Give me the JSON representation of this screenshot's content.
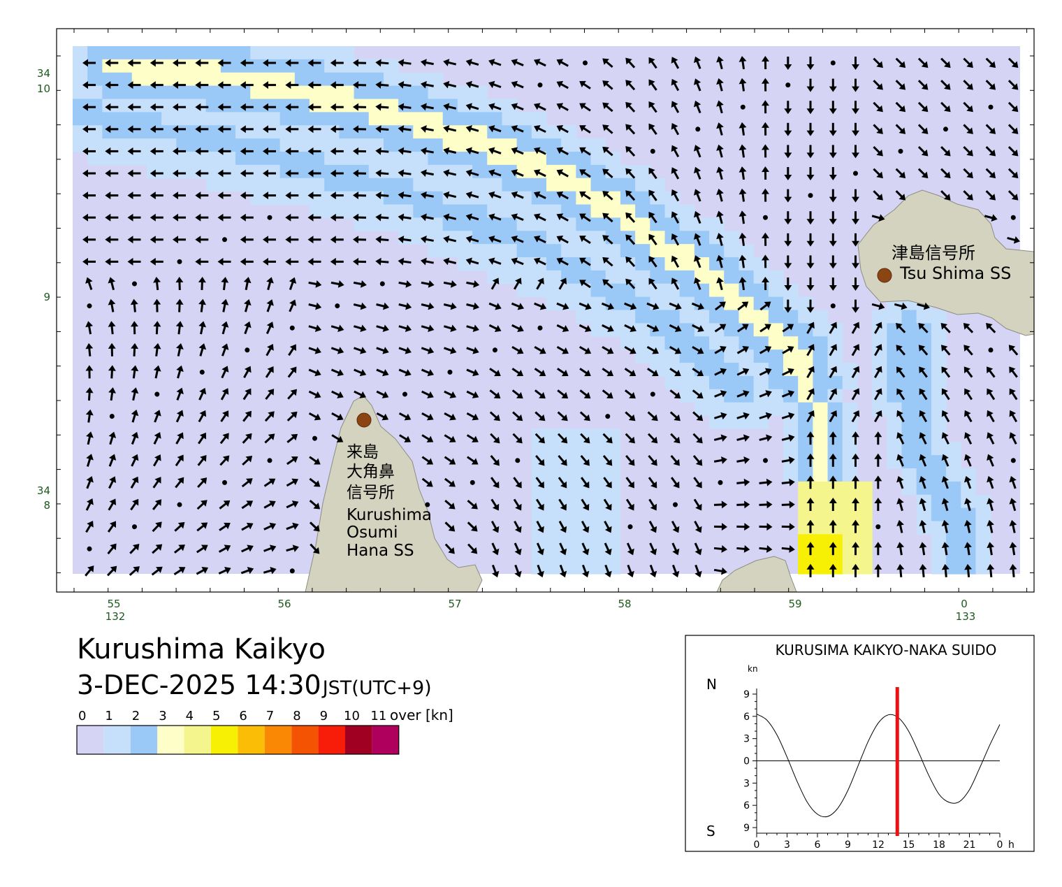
{
  "map": {
    "lat_labels": [
      {
        "deg": "34",
        "min": "10"
      },
      {
        "deg": "",
        "min": "9"
      },
      {
        "deg": "34",
        "min": "8"
      }
    ],
    "lon_labels": [
      {
        "min": "55",
        "deg": "132"
      },
      {
        "min": "56",
        "deg": ""
      },
      {
        "min": "57",
        "deg": ""
      },
      {
        "min": "58",
        "deg": ""
      },
      {
        "min": "59",
        "deg": ""
      },
      {
        "min": "0",
        "deg": "133"
      }
    ],
    "stations": [
      {
        "name_jp": "津島信号所",
        "name_en": "Tsu Shima SS"
      },
      {
        "name_jp": "来島\n大角鼻\n信号所",
        "name_en": "Kurushima\nOsumi\nHana SS"
      }
    ],
    "colors": {
      "land": "#d3d3c0",
      "land_edge": "#8d8d80",
      "station_marker": "#8b4513",
      "grid_label": "#1c5a1c"
    }
  },
  "header": {
    "title": "Kurushima Kaikyo",
    "datetime": "3-DEC-2025 14:30",
    "timezone": "JST(UTC+9)"
  },
  "legend": {
    "ticks": [
      "0",
      "1",
      "2",
      "3",
      "4",
      "5",
      "6",
      "7",
      "8",
      "9",
      "10",
      "11"
    ],
    "unit": "over [kn]",
    "colors": [
      "#d6d4f5",
      "#c6e0fb",
      "#9ac9f7",
      "#fefec8",
      "#f5f58e",
      "#f7ef04",
      "#fbbd05",
      "#fb8804",
      "#f55304",
      "#f71d08",
      "#a00022",
      "#b0005e"
    ]
  },
  "tide_chart": {
    "title": "KURUSIMA KAIKYO-NAKA SUIDO",
    "unit": "kn",
    "north_label": "N",
    "south_label": "S",
    "y_tick_labels": [
      "9",
      "6",
      "3",
      "0",
      "3",
      "6",
      "9"
    ],
    "x_tick_labels": [
      "0",
      "3",
      "6",
      "9",
      "12",
      "15",
      "18",
      "21",
      "0"
    ],
    "x_unit": "h",
    "current_time_hours": 14.5,
    "current_line_color": "#ee1111",
    "series": [
      {
        "x": [
          0,
          1,
          2,
          3,
          4,
          5,
          6,
          7,
          8,
          9,
          10,
          11,
          12,
          13,
          14,
          15,
          16,
          17,
          18,
          19,
          20,
          21,
          22,
          23,
          24
        ],
        "y": [
          6.3,
          5.5,
          3.5,
          0.5,
          -2.8,
          -5.6,
          -7.2,
          -7.5,
          -6.4,
          -4.0,
          -0.7,
          2.6,
          5.1,
          6.2,
          5.8,
          4.0,
          1.1,
          -2.0,
          -4.5,
          -5.6,
          -5.5,
          -3.9,
          -1.0,
          2.1,
          4.9
        ]
      }
    ],
    "ylim": [
      -9,
      9
    ],
    "xlim": [
      0,
      24
    ]
  }
}
